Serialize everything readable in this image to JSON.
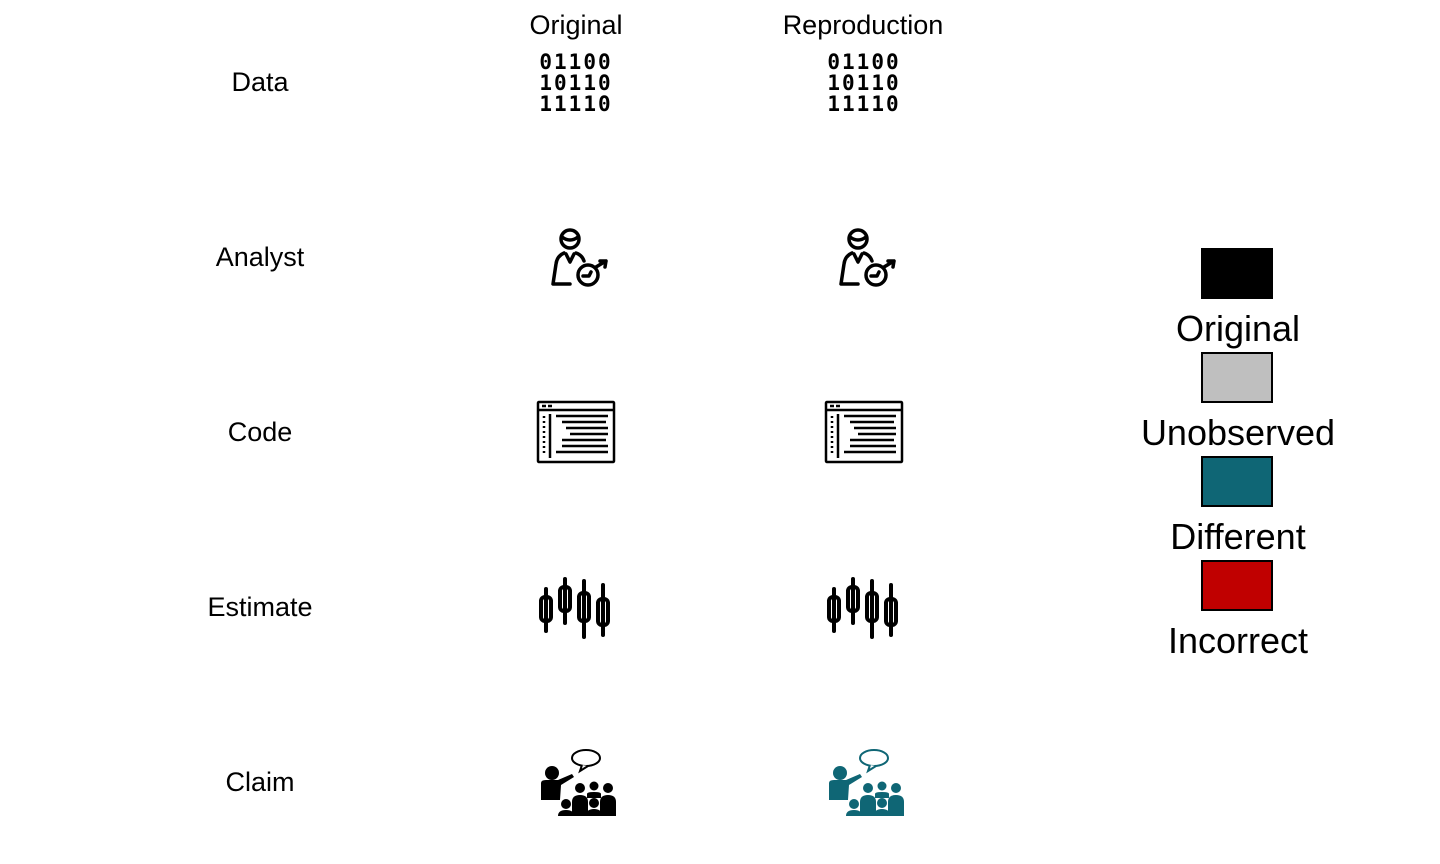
{
  "columns": {
    "original": "Original",
    "reproduction": "Reproduction"
  },
  "rows": [
    "Data",
    "Analyst",
    "Code",
    "Estimate",
    "Claim"
  ],
  "binary": {
    "line1": "01100",
    "line2": "10110",
    "line3": "11110"
  },
  "colors": {
    "original": "#000000",
    "unobserved": "#bfbfbf",
    "different": "#0f6675",
    "incorrect": "#c00000"
  },
  "cell_status": {
    "original": [
      "original",
      "original",
      "original",
      "original",
      "original"
    ],
    "reproduction": [
      "original",
      "original",
      "original",
      "different",
      "different"
    ]
  },
  "icons": {
    "data": "binary-data-icon",
    "analyst": "analyst-icon",
    "code": "code-window-icon",
    "estimate": "candlestick-chart-icon",
    "claim": "presenter-audience-icon"
  },
  "legend": [
    {
      "label": "Original",
      "color": "#000000"
    },
    {
      "label": "Unobserved",
      "color": "#bfbfbf"
    },
    {
      "label": "Different",
      "color": "#0f6675"
    },
    {
      "label": "Incorrect",
      "color": "#c00000"
    }
  ]
}
